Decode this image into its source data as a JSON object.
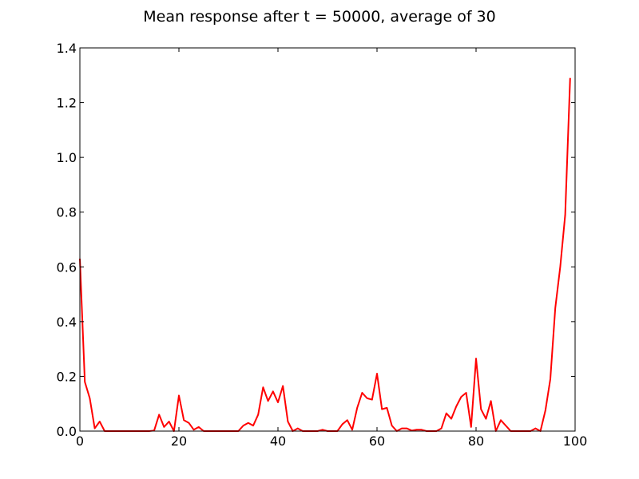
{
  "chart_data": {
    "type": "line",
    "title": "Mean response after t = 50000, average of 30",
    "xlabel": "",
    "ylabel": "",
    "xlim": [
      0,
      100
    ],
    "ylim": [
      0,
      1.4
    ],
    "x_ticks": [
      0,
      20,
      40,
      60,
      80,
      100
    ],
    "x_tick_labels": [
      "0",
      "20",
      "40",
      "60",
      "80",
      "100"
    ],
    "y_ticks": [
      0.0,
      0.2,
      0.4,
      0.6,
      0.8,
      1.0,
      1.2,
      1.4
    ],
    "y_tick_labels": [
      "0.0",
      "0.2",
      "0.4",
      "0.6",
      "0.8",
      "1.0",
      "1.2",
      "1.4"
    ],
    "grid": false,
    "series": [
      {
        "color": "#ff0000",
        "x": [
          0,
          1,
          2,
          3,
          4,
          5,
          6,
          7,
          8,
          9,
          10,
          11,
          12,
          13,
          14,
          15,
          16,
          17,
          18,
          19,
          20,
          21,
          22,
          23,
          24,
          25,
          26,
          27,
          28,
          29,
          30,
          31,
          32,
          33,
          34,
          35,
          36,
          37,
          38,
          39,
          40,
          41,
          42,
          43,
          44,
          45,
          46,
          47,
          48,
          49,
          50,
          51,
          52,
          53,
          54,
          55,
          56,
          57,
          58,
          59,
          60,
          61,
          62,
          63,
          64,
          65,
          66,
          67,
          68,
          69,
          70,
          71,
          72,
          73,
          74,
          75,
          76,
          77,
          78,
          79,
          80,
          81,
          82,
          83,
          84,
          85,
          86,
          87,
          88,
          89,
          90,
          91,
          92,
          93,
          94,
          95,
          96,
          97,
          98,
          99
        ],
        "values": [
          0.63,
          0.18,
          0.12,
          0.01,
          0.035,
          0.0,
          0.0,
          0.0,
          0.0,
          0.0,
          0.0,
          0.0,
          0.0,
          0.0,
          0.0,
          0.002,
          0.06,
          0.015,
          0.035,
          0.0,
          0.13,
          0.04,
          0.03,
          0.005,
          0.015,
          0.0,
          0.0,
          0.0,
          0.0,
          0.0,
          0.0,
          0.0,
          0.0,
          0.02,
          0.03,
          0.02,
          0.06,
          0.16,
          0.11,
          0.145,
          0.105,
          0.165,
          0.035,
          0.0,
          0.01,
          0.0,
          0.0,
          0.0,
          0.0,
          0.005,
          0.0,
          0.0,
          0.0,
          0.025,
          0.04,
          0.005,
          0.085,
          0.14,
          0.12,
          0.115,
          0.21,
          0.08,
          0.085,
          0.02,
          0.0,
          0.01,
          0.01,
          0.002,
          0.005,
          0.005,
          0.0,
          0.0,
          0.0,
          0.01,
          0.065,
          0.045,
          0.09,
          0.125,
          0.14,
          0.015,
          0.265,
          0.08,
          0.045,
          0.11,
          0.0,
          0.04,
          0.02,
          0.0,
          0.0,
          0.0,
          0.0,
          0.0,
          0.01,
          0.0,
          0.075,
          0.19,
          0.45,
          0.6,
          0.79,
          1.29
        ]
      }
    ]
  }
}
